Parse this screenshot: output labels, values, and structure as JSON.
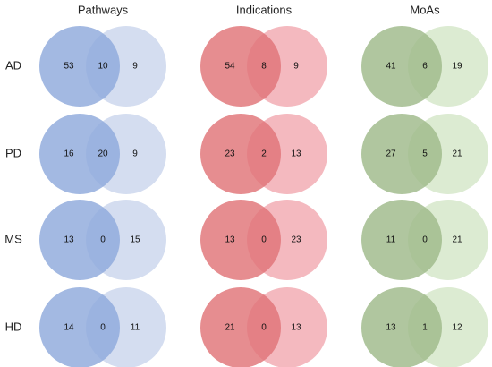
{
  "columns": [
    {
      "title": "Pathways",
      "left_color": "#8fa9dc",
      "right_color": "#d4ddf0"
    },
    {
      "title": "Indications",
      "left_color": "#e07478",
      "right_color": "#f4b9bf"
    },
    {
      "title": "MoAs",
      "left_color": "#9fba8a",
      "right_color": "#dcebd2"
    }
  ],
  "rows": [
    {
      "label": "AD",
      "cells": [
        {
          "left": "53",
          "both": "10",
          "right": "9"
        },
        {
          "left": "54",
          "both": "8",
          "right": "9"
        },
        {
          "left": "41",
          "both": "6",
          "right": "19"
        }
      ]
    },
    {
      "label": "PD",
      "cells": [
        {
          "left": "16",
          "both": "20",
          "right": "9"
        },
        {
          "left": "23",
          "both": "2",
          "right": "13"
        },
        {
          "left": "27",
          "both": "5",
          "right": "21"
        }
      ]
    },
    {
      "label": "MS",
      "cells": [
        {
          "left": "13",
          "both": "0",
          "right": "15"
        },
        {
          "left": "13",
          "both": "0",
          "right": "23"
        },
        {
          "left": "11",
          "both": "0",
          "right": "21"
        }
      ]
    },
    {
      "label": "HD",
      "cells": [
        {
          "left": "14",
          "both": "0",
          "right": "11"
        },
        {
          "left": "21",
          "both": "0",
          "right": "13"
        },
        {
          "left": "13",
          "both": "1",
          "right": "12"
        }
      ]
    }
  ]
}
